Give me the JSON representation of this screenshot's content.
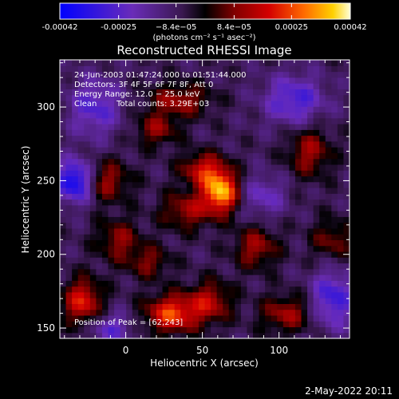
{
  "chart_data": {
    "type": "heatmap",
    "title": "Reconstructed RHESSI Image",
    "xlabel": "Heliocentric X (arcsec)",
    "ylabel": "Heliocentric Y (arcsec)",
    "xlim": [
      -43,
      146
    ],
    "ylim": [
      143,
      332
    ],
    "x_ticks": [
      0,
      50,
      100
    ],
    "y_ticks": [
      150,
      200,
      250,
      300
    ],
    "colorbar": {
      "min": -0.00042,
      "max": 0.00042,
      "tick_values": [
        -0.00042,
        -0.00025,
        -8.4e-05,
        8.4e-05,
        0.00025,
        0.00042
      ],
      "tick_labels": [
        "-0.00042",
        "-0.00025",
        "−8.4e−05",
        "8.4e−05",
        "0.00025",
        "0.00042"
      ],
      "units": "(photons cm⁻² s⁻¹ asec⁻²)",
      "colors": [
        "#0000ff",
        "#6a2cb8",
        "#3a1850",
        "#000000",
        "#800000",
        "#d40000",
        "#ff6a00",
        "#ffd000",
        "#ffffd8"
      ]
    },
    "annotations": {
      "time_range": "24-Jun-2003 01:47:24.000 to 01:51:44.000",
      "detectors": "Detectors: 3F 4F 5F 6F 7F 8F, Att 0",
      "energy": "Energy Range: 12.0 − 25.0 keV",
      "clean": "Clean",
      "total_counts": "Total counts: 3.29E+03",
      "peak": "Position of Peak = [62,243]"
    },
    "peak_position": [
      62,
      243
    ],
    "sources": [
      {
        "x": 62,
        "y": 243,
        "amp": 1.0,
        "sx": 8,
        "sy": 10
      },
      {
        "x": 50,
        "y": 258,
        "amp": 0.55,
        "sx": 10,
        "sy": 8
      },
      {
        "x": 40,
        "y": 230,
        "amp": 0.45,
        "sx": 12,
        "sy": 9
      },
      {
        "x": 30,
        "y": 160,
        "amp": 0.75,
        "sx": 12,
        "sy": 9
      },
      {
        "x": 55,
        "y": 168,
        "amp": 0.5,
        "sx": 10,
        "sy": 10
      },
      {
        "x": -28,
        "y": 168,
        "amp": 0.65,
        "sx": 9,
        "sy": 11
      },
      {
        "x": -15,
        "y": 250,
        "amp": 0.5,
        "sx": 12,
        "sy": 10
      },
      {
        "x": 35,
        "y": 305,
        "amp": 0.45,
        "sx": 14,
        "sy": 8
      },
      {
        "x": 20,
        "y": 285,
        "amp": 0.4,
        "sx": 10,
        "sy": 8
      },
      {
        "x": 120,
        "y": 270,
        "amp": 0.45,
        "sx": 10,
        "sy": 12
      },
      {
        "x": 85,
        "y": 205,
        "amp": 0.45,
        "sx": 10,
        "sy": 10
      },
      {
        "x": 105,
        "y": 160,
        "amp": 0.45,
        "sx": 12,
        "sy": 9
      },
      {
        "x": 135,
        "y": 210,
        "amp": 0.35,
        "sx": 10,
        "sy": 10
      },
      {
        "x": -5,
        "y": 210,
        "amp": 0.4,
        "sx": 10,
        "sy": 10
      },
      {
        "x": 15,
        "y": 195,
        "amp": 0.35,
        "sx": 10,
        "sy": 8
      },
      {
        "x": -32,
        "y": 250,
        "amp": -0.9,
        "sx": 9,
        "sy": 10
      },
      {
        "x": 110,
        "y": 305,
        "amp": -0.5,
        "sx": 14,
        "sy": 12
      },
      {
        "x": 135,
        "y": 170,
        "amp": -0.55,
        "sx": 10,
        "sy": 14
      },
      {
        "x": -20,
        "y": 300,
        "amp": -0.45,
        "sx": 12,
        "sy": 14
      },
      {
        "x": -10,
        "y": 150,
        "amp": -0.4,
        "sx": 10,
        "sy": 8
      },
      {
        "x": 90,
        "y": 240,
        "amp": -0.35,
        "sx": 10,
        "sy": 10
      }
    ]
  },
  "footer": {
    "date": "2-May-2022 20:11"
  }
}
